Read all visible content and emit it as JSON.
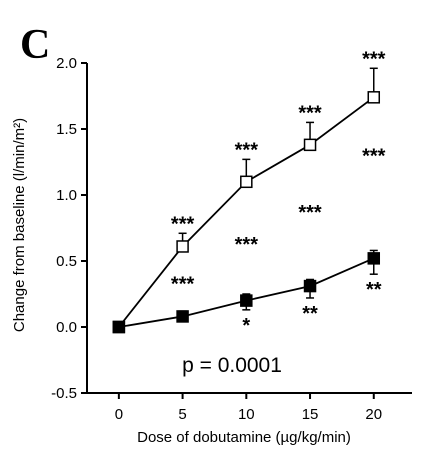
{
  "panel_label": "C",
  "chart_data": {
    "type": "line",
    "title": "",
    "xlabel": "Dose of dobutamine (µg/kg/min)",
    "ylabel": "Change from baseline (l/min/m²)",
    "x": [
      0,
      5,
      10,
      15,
      20
    ],
    "xlim": [
      -2.5,
      23
    ],
    "ylim": [
      -0.5,
      2.0
    ],
    "x_ticks": [
      "0",
      "5",
      "10",
      "15",
      "20"
    ],
    "y_ticks": [
      "2.0",
      "1.5",
      "1.0",
      "0.5",
      "0.0",
      "-0.5"
    ],
    "grid": false,
    "series": [
      {
        "marker": "open-square",
        "values": [
          0.0,
          0.61,
          1.1,
          1.38,
          1.74
        ],
        "error_upper": [
          0.0,
          0.71,
          1.27,
          1.55,
          1.96
        ],
        "significance": [
          "",
          "***",
          "***",
          "***",
          "***"
        ]
      },
      {
        "marker": "filled-square",
        "values": [
          0.0,
          0.08,
          0.2,
          0.31,
          0.52
        ],
        "error_upper": [
          0.0,
          0.12,
          0.25,
          0.36,
          0.58
        ],
        "error_lower": [
          0.0,
          0.04,
          0.13,
          0.22,
          0.4
        ],
        "significance": [
          "",
          "",
          "*",
          "**",
          "**"
        ]
      }
    ],
    "between_group_significance": [
      {
        "x": 5,
        "y": 0.33,
        "text": "***"
      },
      {
        "x": 10,
        "y": 0.63,
        "text": "***"
      },
      {
        "x": 15,
        "y": 0.87,
        "text": "***"
      },
      {
        "x": 20,
        "y": 1.3,
        "text": "***"
      }
    ],
    "annotation": "p = 0.0001"
  }
}
